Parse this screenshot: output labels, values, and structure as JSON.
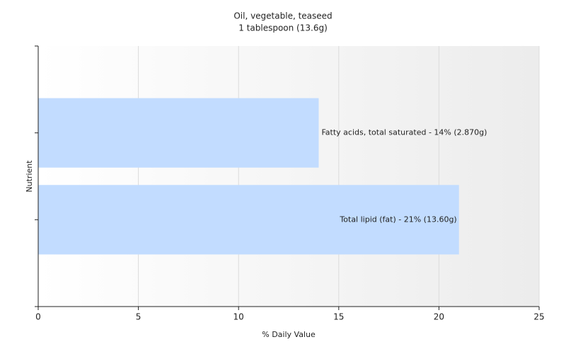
{
  "chart_data": {
    "type": "bar",
    "orientation": "horizontal",
    "title": "Oil, vegetable, teaseed",
    "subtitle": "1 tablespoon (13.6g)",
    "x_label": "% Daily Value",
    "y_label": "Nutrient",
    "categories": [
      null,
      null
    ],
    "values": [
      14,
      21
    ],
    "value_labels": [
      "Fatty acids, total saturated - 14% (2.870g)",
      "Total lipid (fat) - 21% (13.60g)"
    ],
    "color": "#c2dcff",
    "xlim": [
      0,
      25
    ],
    "xticks": [
      0,
      5,
      10,
      15,
      20,
      25
    ],
    "grid": true
  }
}
